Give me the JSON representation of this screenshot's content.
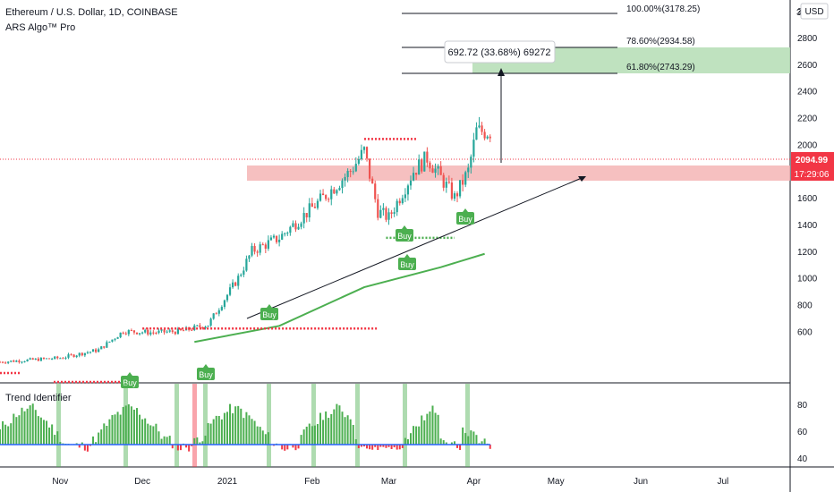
{
  "header": {
    "symbol_title": "Ethereum / U.S. Dollar, 1D, COINBASE",
    "indicator_name": "ARS Algo™ Pro",
    "currency": "USD",
    "partial_axis_label": "3"
  },
  "price_axis": {
    "ticks": [
      "3000",
      "2800",
      "2600",
      "2400",
      "2200",
      "2000",
      "1800",
      "1600",
      "1400",
      "1200",
      "1000",
      "800",
      "600"
    ],
    "current_price": "2094.99",
    "countdown": "17:29:06",
    "colors": {
      "price_tag": "#f23645",
      "up": "#26a69a",
      "down": "#ef5350"
    }
  },
  "time_axis": {
    "labels": [
      "Nov",
      "Dec",
      "2021",
      "Feb",
      "Mar",
      "Apr",
      "May",
      "Jun",
      "Jul"
    ]
  },
  "fib": {
    "levels": [
      {
        "label": "100.00%(3178.25)",
        "price": 3178.25
      },
      {
        "label": "78.60%(2934.58)",
        "price": 2934.58
      },
      {
        "label": "61.80%(2743.29)",
        "price": 2743.29
      }
    ]
  },
  "measure_box": {
    "text": "692.72 (33.68%) 69272"
  },
  "signals": [
    {
      "label": "Buy",
      "kind": "buy"
    },
    {
      "label": "Buy",
      "kind": "buy"
    },
    {
      "label": "Buy",
      "kind": "buy"
    },
    {
      "label": "Buy",
      "kind": "buy"
    },
    {
      "label": "Buy",
      "kind": "buy"
    },
    {
      "label": "Buy",
      "kind": "buy"
    }
  ],
  "sub_panel": {
    "title": "Trend Identifier",
    "ticks": [
      "80",
      "60",
      "40"
    ],
    "colors": {
      "up": "#4caf50",
      "down": "#f23645",
      "baseline": "#2962ff"
    }
  },
  "chart_data": {
    "type": "candlestick",
    "symbol": "ETHUSD",
    "timeframe": "1D",
    "y_range": [
      450,
      3200
    ],
    "x_range": [
      "2020-10-10",
      "2021-07-31"
    ],
    "price_path": [
      [
        "2020-10-10",
        370
      ],
      [
        "2020-11-01",
        400
      ],
      [
        "2020-11-15",
        460
      ],
      [
        "2020-11-24",
        600
      ],
      [
        "2020-12-05",
        590
      ],
      [
        "2020-12-15",
        600
      ],
      [
        "2020-12-25",
        650
      ],
      [
        "2021-01-05",
        1000
      ],
      [
        "2021-01-10",
        1200
      ],
      [
        "2021-01-20",
        1300
      ],
      [
        "2021-02-05",
        1600
      ],
      [
        "2021-02-15",
        1800
      ],
      [
        "2021-02-20",
        1950
      ],
      [
        "2021-02-25",
        1500
      ],
      [
        "2021-03-01",
        1450
      ],
      [
        "2021-03-10",
        1800
      ],
      [
        "2021-03-15",
        1900
      ],
      [
        "2021-03-25",
        1600
      ],
      [
        "2021-03-30",
        1800
      ],
      [
        "2021-04-02",
        2100
      ],
      [
        "2021-04-07",
        2095
      ]
    ],
    "current_price": 2094.99,
    "supply_zone": [
      1960,
      2060
    ],
    "ema_path": [
      [
        "2020-12-20",
        520
      ],
      [
        "2021-01-20",
        640
      ],
      [
        "2021-02-20",
        930
      ],
      [
        "2021-03-20",
        1080
      ],
      [
        "2021-04-05",
        1180
      ]
    ],
    "support_lines": [
      {
        "price": 620,
        "from": "2020-12-01",
        "to": "2021-02-25"
      },
      {
        "price": 2040,
        "from": "2021-02-20",
        "to": "2021-03-11"
      },
      {
        "price": 1300,
        "from": "2021-02-28",
        "to": "2021-03-25"
      }
    ],
    "trendline": {
      "from": [
        "2021-01-05",
        900
      ],
      "to": [
        "2021-04-15",
        1960
      ]
    },
    "fib_levels": [
      {
        "ratio": "100.00%",
        "price": 3178.25
      },
      {
        "ratio": "78.60%",
        "price": 2934.58
      },
      {
        "ratio": "61.80%",
        "price": 2743.29
      }
    ],
    "target_zone": [
      2743.29,
      2934.58
    ],
    "measure": {
      "change": 692.72,
      "percent": 33.68
    },
    "oscillator": {
      "y_range": [
        35,
        95
      ],
      "baseline": 50
    }
  }
}
